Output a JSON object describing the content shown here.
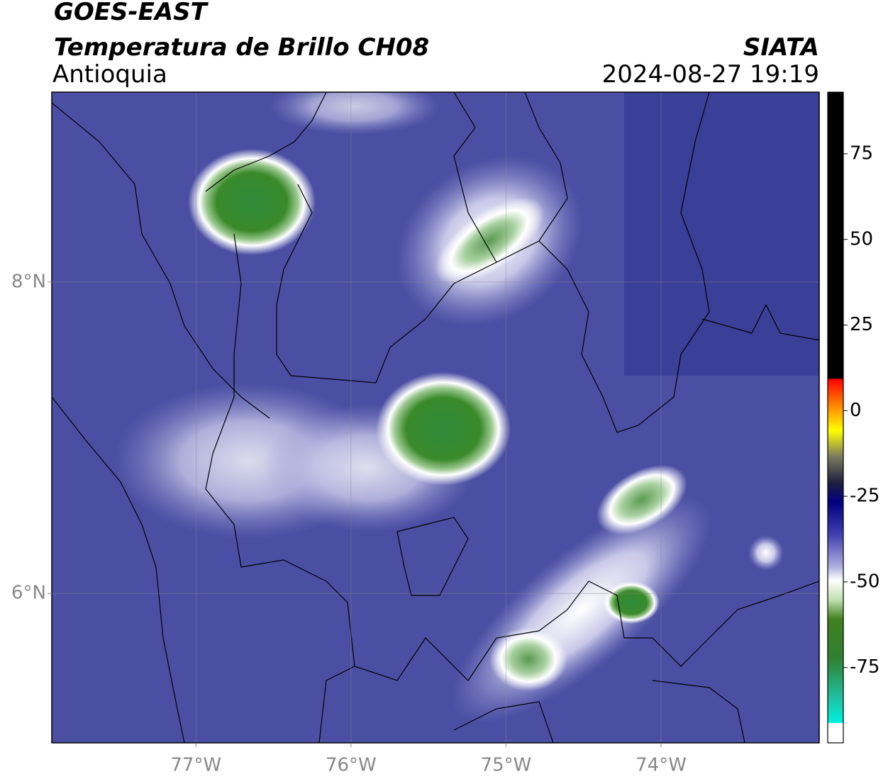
{
  "header": {
    "satellite": "GOES-EAST",
    "product": "Temperatura de Brillo CH08",
    "region": "Antioquia",
    "source": "SIATA",
    "datetime": "2024-08-27 19:19"
  },
  "map": {
    "xlim": [
      -77.93,
      -72.98
    ],
    "ylim": [
      5.04,
      9.22
    ],
    "xticks": [
      {
        "value": -77,
        "label": "77°W"
      },
      {
        "value": -76,
        "label": "76°W"
      },
      {
        "value": -75,
        "label": "75°W"
      },
      {
        "value": -74,
        "label": "74°W"
      }
    ],
    "yticks": [
      {
        "value": 8,
        "label": "8°N"
      },
      {
        "value": 6,
        "label": "6°N"
      }
    ]
  },
  "colorbar": {
    "lim": [
      -97,
      93
    ],
    "ticks": [
      75,
      50,
      25,
      0,
      -25,
      -50,
      -75
    ]
  }
}
